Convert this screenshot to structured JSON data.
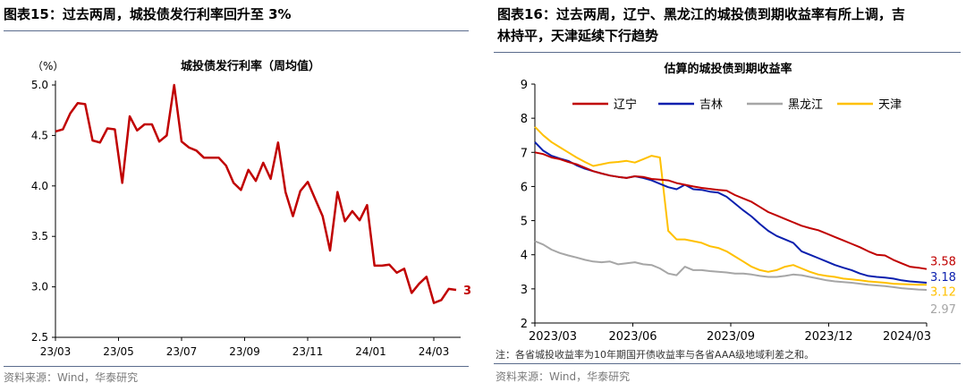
{
  "left_panel": {
    "figure_title": "图表15：过去两周，城投债发行利率回升至 3%",
    "source": "资料来源：Wind，华泰研究"
  },
  "right_panel": {
    "figure_title_line1": "图表16：过去两周，辽宁、黑龙江的城投债到期收益率有所上调，吉",
    "figure_title_line2": "林持平，天津延续下行趋势",
    "note": "注：各省城投收益率为10年期国开债收益率与各省AAA级地域利差之和。",
    "source": "资料来源：Wind，华泰研究"
  },
  "chart_data": [
    {
      "type": "line",
      "title": "城投债发行利率（周均值）",
      "ylabel": "（%）",
      "xlabel": "",
      "ylim": [
        2.5,
        5.0
      ],
      "yticks": [
        "2.5",
        "3.0",
        "3.5",
        "4.0",
        "4.5",
        "5.0"
      ],
      "xticks": [
        "23/03",
        "23/05",
        "23/07",
        "23/09",
        "23/11",
        "24/01",
        "24/03"
      ],
      "end_label": "3",
      "color": "#c00000",
      "series": [
        {
          "name": "城投债发行利率（周均值）",
          "values": [
            4.54,
            4.56,
            4.72,
            4.82,
            4.81,
            4.45,
            4.43,
            4.57,
            4.56,
            4.03,
            4.69,
            4.55,
            4.61,
            4.61,
            4.44,
            4.5,
            5.0,
            4.44,
            4.38,
            4.35,
            4.28,
            4.28,
            4.28,
            4.2,
            4.03,
            3.96,
            4.16,
            4.05,
            4.23,
            4.07,
            4.43,
            3.94,
            3.7,
            3.95,
            4.04,
            3.87,
            3.7,
            3.36,
            3.94,
            3.65,
            3.75,
            3.66,
            3.81,
            3.21,
            3.21,
            3.22,
            3.14,
            3.18,
            2.94,
            3.03,
            3.1,
            2.84,
            2.87,
            2.98,
            2.97
          ]
        }
      ]
    },
    {
      "type": "line",
      "title": "估算的城投债到期收益率",
      "ylim": [
        2,
        9
      ],
      "yticks": [
        "2",
        "3",
        "4",
        "5",
        "6",
        "7",
        "8",
        "9"
      ],
      "xticks": [
        "2023/03",
        "2023/06",
        "2023/09",
        "2023/12",
        "2024/03"
      ],
      "series": [
        {
          "name": "辽宁",
          "color": "#c00000",
          "end_label": "3.58",
          "values": [
            7.0,
            6.95,
            6.85,
            6.8,
            6.72,
            6.65,
            6.55,
            6.45,
            6.38,
            6.32,
            6.28,
            6.25,
            6.3,
            6.28,
            6.22,
            6.2,
            6.18,
            6.1,
            6.05,
            6.0,
            5.96,
            5.93,
            5.9,
            5.88,
            5.75,
            5.65,
            5.55,
            5.4,
            5.25,
            5.15,
            5.05,
            4.95,
            4.85,
            4.78,
            4.72,
            4.62,
            4.52,
            4.42,
            4.32,
            4.22,
            4.1,
            4.0,
            3.98,
            3.85,
            3.75,
            3.65,
            3.62,
            3.58
          ]
        },
        {
          "name": "吉林",
          "color": "#0a1fae",
          "end_label": "3.18",
          "values": [
            7.3,
            7.05,
            6.9,
            6.82,
            6.75,
            6.62,
            6.52,
            6.45,
            6.38,
            6.32,
            6.28,
            6.25,
            6.3,
            6.25,
            6.18,
            6.08,
            5.98,
            5.92,
            6.05,
            5.92,
            5.9,
            5.85,
            5.82,
            5.7,
            5.5,
            5.3,
            5.12,
            4.9,
            4.7,
            4.55,
            4.45,
            4.35,
            4.1,
            4.0,
            3.9,
            3.8,
            3.7,
            3.62,
            3.55,
            3.45,
            3.38,
            3.35,
            3.33,
            3.3,
            3.25,
            3.22,
            3.2,
            3.18
          ]
        },
        {
          "name": "黑龙江",
          "color": "#a6a6a6",
          "end_label": "2.97",
          "values": [
            4.4,
            4.3,
            4.15,
            4.05,
            3.98,
            3.92,
            3.85,
            3.8,
            3.78,
            3.8,
            3.72,
            3.75,
            3.78,
            3.72,
            3.7,
            3.6,
            3.45,
            3.4,
            3.65,
            3.55,
            3.55,
            3.52,
            3.5,
            3.48,
            3.45,
            3.45,
            3.42,
            3.38,
            3.35,
            3.35,
            3.38,
            3.42,
            3.4,
            3.35,
            3.3,
            3.25,
            3.22,
            3.2,
            3.18,
            3.15,
            3.12,
            3.1,
            3.08,
            3.05,
            3.02,
            3.0,
            2.98,
            2.97
          ]
        },
        {
          "name": "天津",
          "color": "#ffc000",
          "end_label": "3.12",
          "values": [
            7.75,
            7.5,
            7.3,
            7.15,
            7.0,
            6.85,
            6.72,
            6.6,
            6.65,
            6.7,
            6.72,
            6.75,
            6.7,
            6.8,
            6.9,
            6.85,
            4.7,
            4.45,
            4.45,
            4.4,
            4.35,
            4.25,
            4.2,
            4.1,
            3.95,
            3.8,
            3.65,
            3.55,
            3.5,
            3.55,
            3.65,
            3.7,
            3.6,
            3.5,
            3.42,
            3.38,
            3.35,
            3.3,
            3.28,
            3.25,
            3.22,
            3.2,
            3.18,
            3.15,
            3.14,
            3.13,
            3.12,
            3.12
          ]
        }
      ]
    }
  ]
}
